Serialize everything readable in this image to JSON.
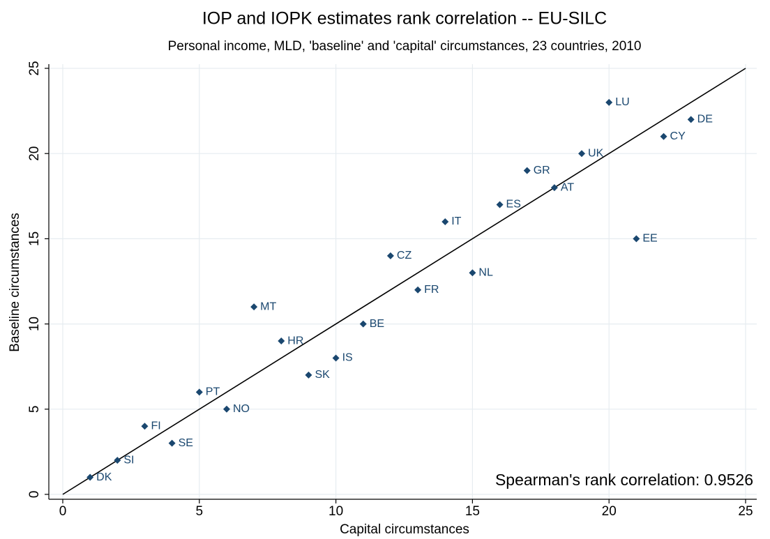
{
  "chart_data": {
    "type": "scatter",
    "title": "IOP and IOPK estimates rank correlation -- EU-SILC",
    "subtitle": "Personal income, MLD, 'baseline' and 'capital' circumstances, 23 countries, 2010",
    "x_label": "Capital circumstances",
    "y_label": "Baseline circumstances",
    "annotation": "Spearman's rank correlation: 0.9526",
    "color": "#1a476f",
    "point_labels": [
      "DK",
      "SI",
      "FI",
      "SE",
      "PT",
      "NO",
      "MT",
      "HR",
      "SK",
      "IS",
      "BE",
      "CZ",
      "FR",
      "IT",
      "NL",
      "ES",
      "GR",
      "AT",
      "UK",
      "LU",
      "EE",
      "CY",
      "DE"
    ],
    "x": [
      1,
      2,
      3,
      4,
      5,
      6,
      7,
      8,
      9,
      10,
      11,
      12,
      13,
      14,
      15,
      16,
      17,
      18,
      19,
      20,
      21,
      22,
      23
    ],
    "values": [
      1,
      2,
      4,
      3,
      6,
      5,
      11,
      9,
      7,
      8,
      10,
      14,
      12,
      16,
      13,
      17,
      19,
      18,
      20,
      23,
      15,
      21,
      22
    ],
    "xlim": [
      0,
      25
    ],
    "ylim": [
      0,
      25
    ],
    "xticks": [
      0,
      5,
      10,
      15,
      20,
      25
    ],
    "yticks": [
      0,
      5,
      10,
      15,
      20,
      25
    ],
    "grid": true,
    "diagonal": true
  }
}
